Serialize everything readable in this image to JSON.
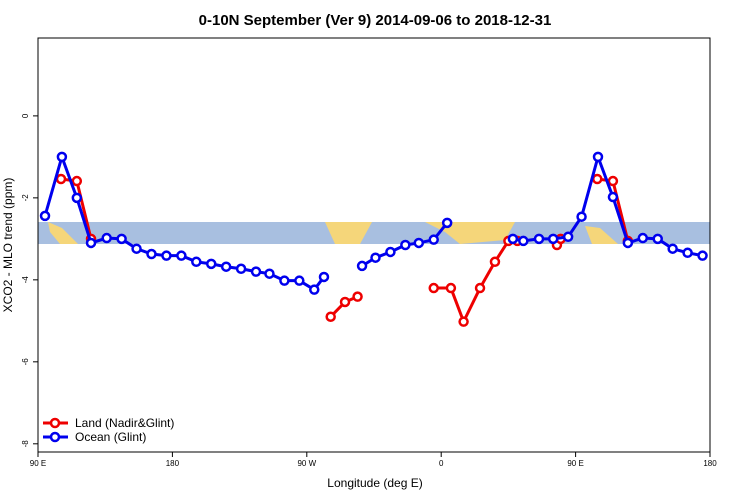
{
  "chart_data": {
    "type": "line",
    "title": "0-10N September (Ver 9)   2014-09-06 to 2018-12-31",
    "x_label": "Longitude (deg E)",
    "y_label": "XCO2 - MLO trend (ppm)",
    "xlim": [
      90,
      540
    ],
    "xticks": [
      {
        "value": 90,
        "label": "90 E"
      },
      {
        "value": 180,
        "label": "180"
      },
      {
        "value": 270,
        "label": "90 W"
      },
      {
        "value": 360,
        "label": "0"
      },
      {
        "value": 450,
        "label": "90 E"
      },
      {
        "value": 540,
        "label": "180"
      }
    ],
    "ylim": [
      -8.2,
      1.9
    ],
    "yticks": [
      0,
      -2,
      -4,
      -6,
      -8
    ],
    "legend": "bottom-left",
    "series": [
      {
        "name": "Land (Nadir&Glint)",
        "color": "#ee0000",
        "x": [
          105.4,
          116,
          125.5,
          null,
          286,
          295.6,
          304,
          null,
          355,
          366.5,
          375,
          386,
          396,
          405,
          411,
          null,
          437.5,
          440,
          null,
          464.5,
          475,
          485
        ],
        "values": [
          -1.54,
          -1.59,
          -3.0,
          null,
          -4.9,
          -4.54,
          -4.41,
          null,
          -4.2,
          -4.2,
          -5.02,
          -4.2,
          -3.56,
          -3.05,
          -3.05,
          null,
          -3.15,
          -3.0,
          null,
          -1.54,
          -1.59,
          -3.05
        ]
      },
      {
        "name": "Ocean (Glint)",
        "color": "#0000ee",
        "x": [
          94.7,
          106,
          116,
          125.5,
          136,
          146,
          156,
          166,
          176,
          186,
          196,
          206,
          216,
          226,
          236,
          245,
          255,
          265,
          275,
          281.5,
          null,
          307,
          316,
          326,
          336,
          345,
          355,
          364,
          null,
          408,
          415,
          425.5,
          435,
          445,
          454,
          465,
          475,
          485,
          495,
          505,
          515,
          525,
          535
        ],
        "values": [
          -2.44,
          -1.0,
          -2.0,
          -3.1,
          -2.98,
          -3.0,
          -3.24,
          -3.37,
          -3.41,
          -3.41,
          -3.56,
          -3.61,
          -3.68,
          -3.73,
          -3.8,
          -3.85,
          -4.02,
          -4.02,
          -4.24,
          -3.93,
          null,
          -3.66,
          -3.46,
          -3.32,
          -3.15,
          -3.1,
          -3.02,
          -2.61,
          null,
          -3.0,
          -3.05,
          -3.0,
          -3.0,
          -2.95,
          -2.46,
          -1.0,
          -1.98,
          -3.1,
          -2.98,
          -3.0,
          -3.24,
          -3.34,
          -3.41
        ]
      }
    ]
  }
}
